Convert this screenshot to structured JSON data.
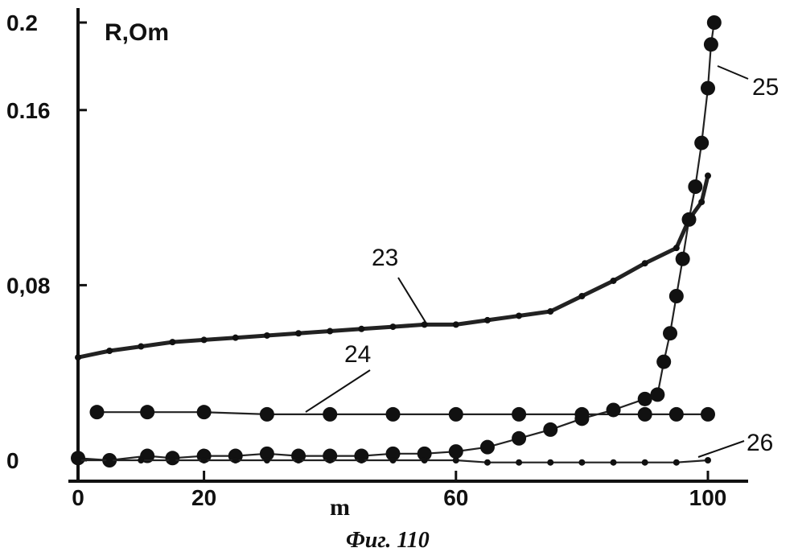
{
  "caption": "Фиг. 110",
  "chart_data": {
    "type": "line",
    "xlabel": "m",
    "ylabel": "R,Om",
    "xlim": [
      0,
      105
    ],
    "ylim": [
      -0.01,
      0.2
    ],
    "x_ticks": [
      {
        "value": 0,
        "label": "0"
      },
      {
        "value": 20,
        "label": "20"
      },
      {
        "value": 60,
        "label": "60"
      },
      {
        "value": 100,
        "label": "100"
      }
    ],
    "y_ticks": [
      {
        "value": 0,
        "label": "0"
      },
      {
        "value": 0.08,
        "label": "0,08"
      },
      {
        "value": 0.16,
        "label": "0.16"
      },
      {
        "value": 0.2,
        "label": "0.2"
      }
    ],
    "colors": {
      "line": "#222222",
      "marker": "#111111"
    },
    "series": [
      {
        "name": "23",
        "marker": "small-dot",
        "x": [
          0,
          5,
          10,
          15,
          20,
          25,
          30,
          35,
          40,
          45,
          50,
          55,
          60,
          65,
          70,
          75,
          80,
          85,
          90,
          95,
          97,
          99,
          100
        ],
        "y": [
          0.047,
          0.05,
          0.052,
          0.054,
          0.055,
          0.056,
          0.057,
          0.058,
          0.059,
          0.06,
          0.061,
          0.062,
          0.062,
          0.064,
          0.066,
          0.068,
          0.075,
          0.082,
          0.09,
          0.097,
          0.11,
          0.118,
          0.13
        ]
      },
      {
        "name": "24",
        "marker": "large-dot",
        "x": [
          3,
          11,
          20,
          30,
          40,
          50,
          60,
          70,
          80,
          90,
          95,
          100
        ],
        "y": [
          0.022,
          0.022,
          0.022,
          0.021,
          0.021,
          0.021,
          0.021,
          0.021,
          0.021,
          0.021,
          0.021,
          0.021
        ]
      },
      {
        "name": "25",
        "marker": "large-dot",
        "x": [
          0,
          5,
          11,
          15,
          20,
          25,
          30,
          35,
          40,
          45,
          50,
          55,
          60,
          65,
          70,
          75,
          80,
          85,
          90,
          92,
          93,
          94,
          95,
          96,
          97,
          98,
          99,
          100,
          100.5,
          101
        ],
        "y": [
          0.001,
          0.0,
          0.002,
          0.001,
          0.002,
          0.002,
          0.003,
          0.002,
          0.002,
          0.002,
          0.003,
          0.003,
          0.004,
          0.006,
          0.01,
          0.014,
          0.019,
          0.023,
          0.028,
          0.03,
          0.045,
          0.058,
          0.075,
          0.092,
          0.11,
          0.125,
          0.145,
          0.17,
          0.19,
          0.2
        ]
      },
      {
        "name": "26",
        "marker": "small-dot",
        "x": [
          0,
          5,
          10,
          15,
          20,
          25,
          30,
          35,
          40,
          45,
          50,
          55,
          60,
          65,
          70,
          75,
          80,
          85,
          90,
          95,
          100
        ],
        "y": [
          0.0,
          0.0,
          0.0,
          0.0,
          0.0,
          0.0,
          0.0,
          0.0,
          0.0,
          0.0,
          0.0,
          0.0,
          0.0,
          -0.001,
          -0.001,
          -0.001,
          -0.001,
          -0.001,
          -0.001,
          -0.001,
          0.0
        ]
      }
    ]
  }
}
